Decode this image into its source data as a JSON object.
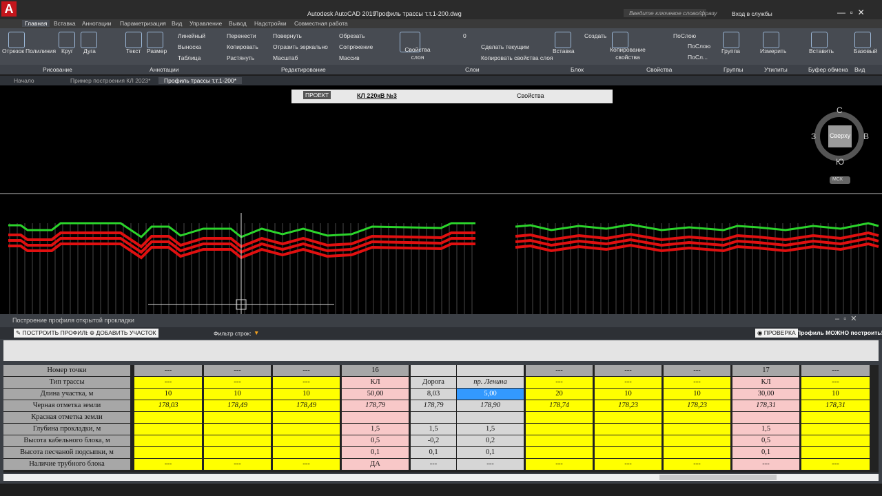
{
  "title_bar": {
    "app": "Autodesk AutoCAD 2019",
    "file": "Профиль трассы т.т.1-200.dwg",
    "search": "Введите ключевое слово/фразу",
    "login": "Вход в службы"
  },
  "ribbon": {
    "tabs": [
      "Главная",
      "Вставка",
      "Аннотации",
      "Параметризация",
      "Вид",
      "Управление",
      "Вывод",
      "Надстройки",
      "Совместная работа"
    ],
    "tools": [
      "Отрезок",
      "Полилиния",
      "Круг",
      "Дуга",
      "Текст",
      "Размер",
      "Линейный",
      "Выноска",
      "Таблица",
      "Перенести",
      "Копировать",
      "Растянуть",
      "Повернуть",
      "Отразить зеркально",
      "Масштаб",
      "Обрезать",
      "Сопряжение",
      "Массив",
      "Свойства слоя",
      "0",
      "Сделать текущим",
      "Копировать свойства слоя",
      "Вставка",
      "Создать",
      "Копирование свойства",
      "ПоСлою",
      "ПоСлою",
      "ПоСл...",
      "Группа",
      "Измерить",
      "Вставить",
      "Базовый"
    ],
    "panels": [
      "Рисование",
      "Аннотации",
      "Редактирование",
      "Слои",
      "Блок",
      "Свойства",
      "Группы",
      "Утилиты",
      "Буфер обмена",
      "Вид"
    ]
  },
  "doc_tabs": [
    "Начало",
    "Пример построения КЛ 2023*",
    "Профиль трассы т.т.1-200*"
  ],
  "float_toolbar": {
    "project": "ПРОЕКТ",
    "line": "КЛ 220кВ №3",
    "properties": "Свойства"
  },
  "view_cube": {
    "north": "С",
    "west": "З",
    "east": "В",
    "south": "Ю",
    "face": "Сверху",
    "ucs": "МСК"
  },
  "palette": {
    "title": "Построение профиля открытой прокладки",
    "build": "ПОСТРОИТЬ ПРОФИЛЬ",
    "add": "ДОБАВИТЬ УЧАСТОК",
    "filter": "Фильтр строк:",
    "check": "ПРОВЕРКА",
    "status": "Профиль МОЖНО построить!"
  },
  "table": {
    "row_headers": [
      "Номер точки",
      "Тип трассы",
      "Длина участка, м",
      "Черная отметка земли",
      "Красная отметка земли",
      "Глубина прокладки, м",
      "Высота кабельного блока, м",
      "Высота песчаной подсыпки, м",
      "Наличие трубного блока"
    ],
    "columns": [
      [
        "---",
        "---",
        "10",
        "178,03",
        null,
        null,
        null,
        null,
        "---"
      ],
      [
        "---",
        "---",
        "10",
        "178,49",
        null,
        null,
        null,
        null,
        "---"
      ],
      [
        "---",
        "---",
        "10",
        "178,49",
        null,
        null,
        null,
        null,
        "---"
      ],
      [
        "16",
        "КЛ",
        "50,00",
        "178,79",
        null,
        "1,5",
        "0,5",
        "0,1",
        "ДА"
      ],
      [
        null,
        "Дорога",
        "8,03",
        "178,79",
        null,
        "1,5",
        "-0,2",
        "0,1",
        "---"
      ],
      [
        null,
        "пр. Ленина",
        "5,00",
        "178,90",
        null,
        "1,5",
        "0,2",
        "0,1",
        "---"
      ],
      [
        "---",
        "---",
        "20",
        "178,74",
        null,
        null,
        null,
        null,
        "---"
      ],
      [
        "---",
        "---",
        "10",
        "178,23",
        null,
        null,
        null,
        null,
        "---"
      ],
      [
        "---",
        "---",
        "10",
        "178,23",
        null,
        null,
        null,
        null,
        "---"
      ],
      [
        "17",
        "КЛ",
        "30,00",
        "178,31",
        null,
        "1,5",
        "0,5",
        "0,1",
        "---"
      ],
      [
        "---",
        "---",
        "10",
        "178,31",
        null,
        null,
        null,
        null,
        "---"
      ]
    ]
  }
}
